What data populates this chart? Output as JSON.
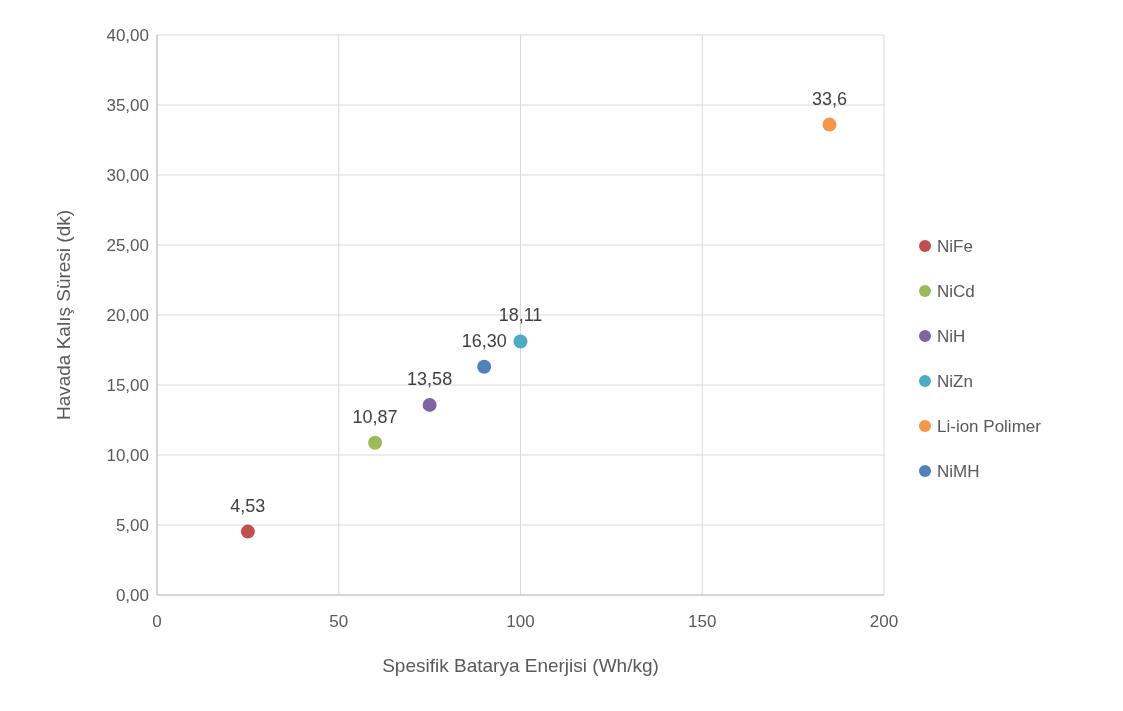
{
  "chart_data": {
    "type": "scatter",
    "xlabel": "Spesifik Batarya Enerjisi (Wh/kg)",
    "ylabel": "Havada Kalış Süresi  (dk)",
    "series": [
      {
        "name": "NiFe",
        "color": "#c0504d",
        "x": [
          25
        ],
        "values": [
          4.53
        ],
        "value_labels": [
          "4,53"
        ]
      },
      {
        "name": "NiCd",
        "color": "#9bbb59",
        "x": [
          60
        ],
        "values": [
          10.87
        ],
        "value_labels": [
          "10,87"
        ]
      },
      {
        "name": "NiH",
        "color": "#8064a2",
        "x": [
          75
        ],
        "values": [
          13.58
        ],
        "value_labels": [
          "13,58"
        ]
      },
      {
        "name": "NiZn",
        "color": "#4bacc6",
        "x": [
          100
        ],
        "values": [
          18.11
        ],
        "value_labels": [
          "18,11"
        ]
      },
      {
        "name": "Li-ion Polimer",
        "color": "#f79646",
        "x": [
          185
        ],
        "values": [
          33.6
        ],
        "value_labels": [
          "33,6"
        ]
      },
      {
        "name": "NiMH",
        "color": "#4f81bd",
        "x": [
          90
        ],
        "values": [
          16.3
        ],
        "value_labels": [
          "16,30"
        ]
      }
    ],
    "xlim": [
      0,
      200
    ],
    "xticks": [
      0,
      50,
      100,
      150,
      200
    ],
    "ylim": [
      0,
      40
    ],
    "yticks": [
      {
        "value": 0,
        "label": "0,00"
      },
      {
        "value": 5,
        "label": "5,00"
      },
      {
        "value": 10,
        "label": "10,00"
      },
      {
        "value": 15,
        "label": "15,00"
      },
      {
        "value": 20,
        "label": "20,00"
      },
      {
        "value": 25,
        "label": "25,00"
      },
      {
        "value": 30,
        "label": "30,00"
      },
      {
        "value": 35,
        "label": "35,00"
      },
      {
        "value": 40,
        "label": "40,00"
      }
    ],
    "grid": true,
    "legend": "right",
    "marker": "circle"
  }
}
